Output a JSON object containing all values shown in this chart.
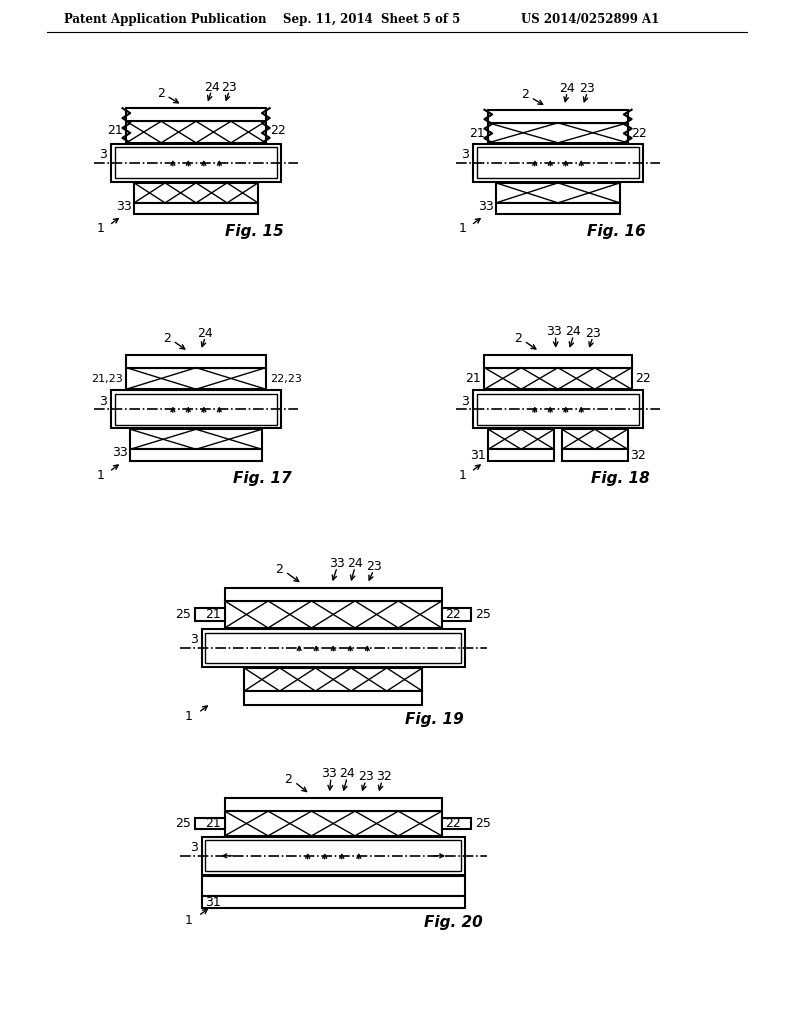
{
  "bg_color": "#ffffff",
  "header_left": "Patent Application Publication",
  "header_mid": "Sep. 11, 2014  Sheet 5 of 5",
  "header_right": "US 2014/0252899 A1"
}
